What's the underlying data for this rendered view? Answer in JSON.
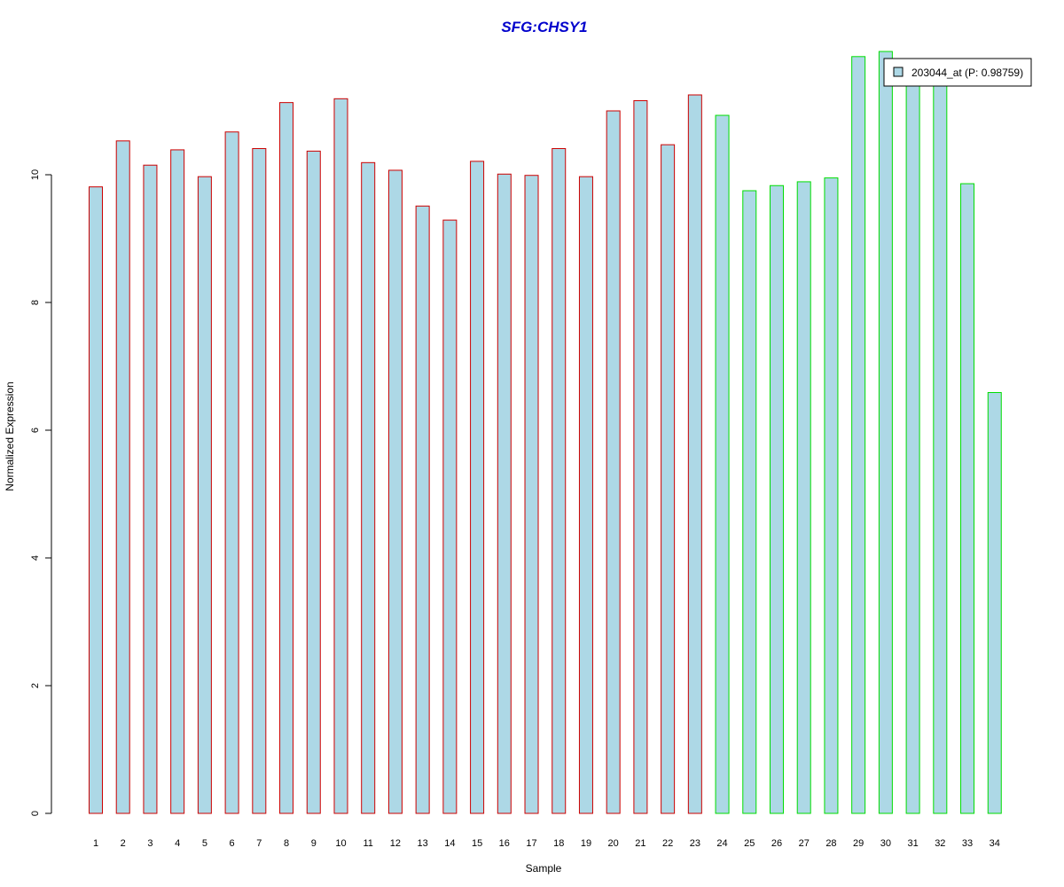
{
  "chart_data": {
    "type": "bar",
    "title": "SFG:CHSY1",
    "xlabel": "Sample",
    "ylabel": "Normalized Expression",
    "ylim": [
      0,
      12
    ],
    "yticks": [
      0,
      2,
      4,
      6,
      8,
      10
    ],
    "categories": [
      "1",
      "2",
      "3",
      "4",
      "5",
      "6",
      "7",
      "8",
      "9",
      "10",
      "11",
      "12",
      "13",
      "14",
      "15",
      "16",
      "17",
      "18",
      "19",
      "20",
      "21",
      "22",
      "23",
      "24",
      "25",
      "26",
      "27",
      "28",
      "29",
      "30",
      "31",
      "32",
      "33",
      "34"
    ],
    "series": [
      {
        "name": "203044_at (P: 0.98759)",
        "values": [
          9.81,
          10.53,
          10.15,
          10.39,
          9.97,
          10.67,
          10.41,
          11.13,
          10.37,
          11.19,
          10.19,
          10.07,
          9.51,
          9.29,
          10.21,
          10.01,
          9.99,
          10.41,
          9.97,
          11.0,
          11.16,
          10.47,
          11.25,
          10.93,
          9.75,
          9.83,
          9.89,
          9.95,
          11.85,
          11.93,
          11.44,
          11.47,
          9.86,
          6.59
        ]
      }
    ],
    "group_of_sample": [
      1,
      1,
      1,
      1,
      1,
      1,
      1,
      1,
      1,
      1,
      1,
      1,
      1,
      1,
      1,
      1,
      1,
      1,
      1,
      1,
      1,
      1,
      1,
      2,
      2,
      2,
      2,
      2,
      2,
      2,
      2,
      2,
      2,
      2
    ],
    "colors": {
      "fill": "#add8e6",
      "group1_border": "#cc0000",
      "group2_border": "#00dd00",
      "title": "#0000cc"
    },
    "legend_position": "top-right",
    "grid": false
  }
}
